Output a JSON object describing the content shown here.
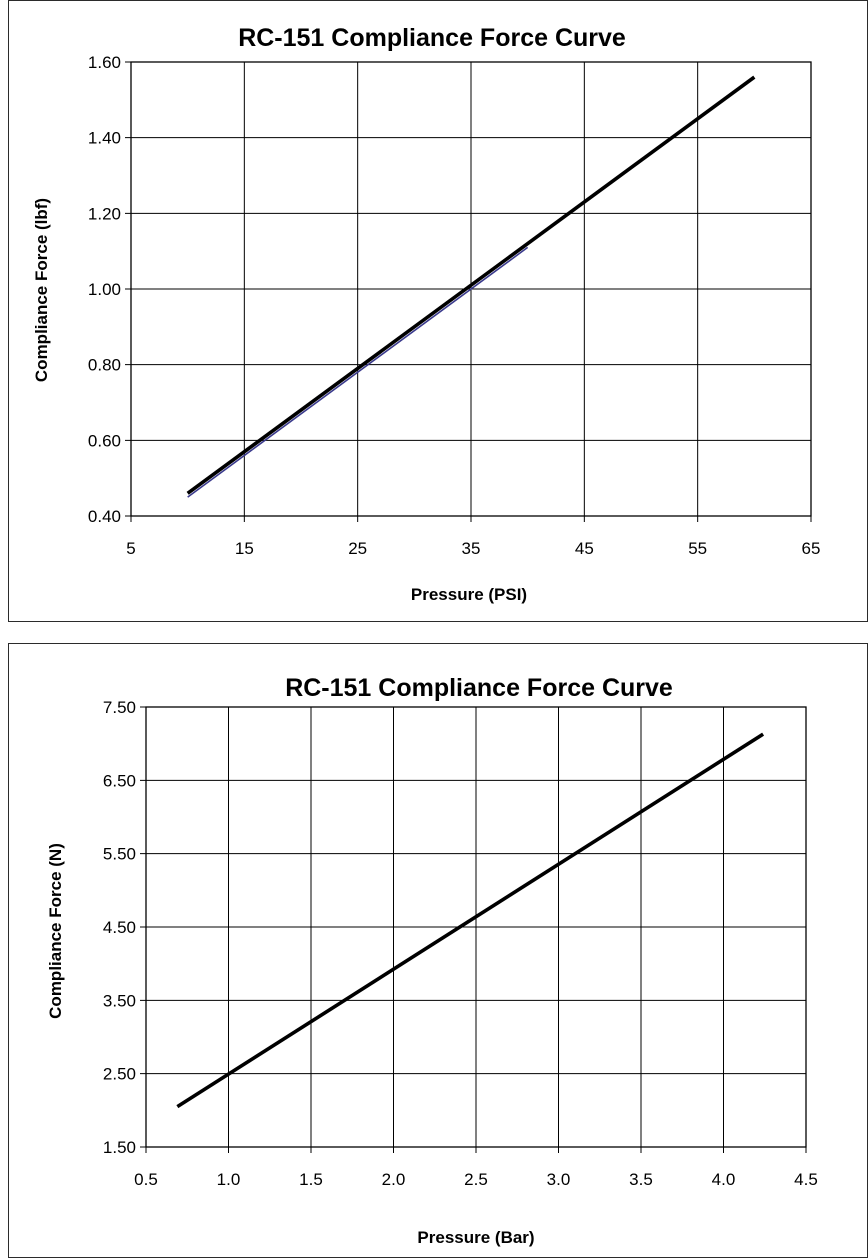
{
  "chart_data": [
    {
      "type": "line",
      "title": "RC-151  Compliance Force Curve",
      "xlabel": "Pressure (PSI)",
      "ylabel": "Compliance Force (lbf)",
      "xlim": [
        5,
        65
      ],
      "ylim": [
        0.4,
        1.6
      ],
      "x_ticks": [
        "5",
        "15",
        "25",
        "35",
        "45",
        "55",
        "65"
      ],
      "y_ticks": [
        "0.40",
        "0.60",
        "0.80",
        "1.00",
        "1.20",
        "1.40",
        "1.60"
      ],
      "grid": true,
      "legend": "none",
      "series": [
        {
          "color": "#000000",
          "x": [
            10,
            60
          ],
          "y": [
            0.46,
            1.56
          ]
        },
        {
          "color": "#3a3a8c",
          "x": [
            10,
            40
          ],
          "y": [
            0.45,
            1.11
          ]
        }
      ]
    },
    {
      "type": "line",
      "title": "RC-151  Compliance Force Curve",
      "xlabel": "Pressure (Bar)",
      "ylabel": "Compliance Force (N)",
      "xlim": [
        0.5,
        4.5
      ],
      "ylim": [
        1.5,
        7.5
      ],
      "x_ticks": [
        "0.5",
        "1.0",
        "1.5",
        "2.0",
        "2.5",
        "3.0",
        "3.5",
        "4.0",
        "4.5"
      ],
      "y_ticks": [
        "1.50",
        "2.50",
        "3.50",
        "4.50",
        "5.50",
        "6.50",
        "7.50"
      ],
      "grid": true,
      "legend": "none",
      "series": [
        {
          "color": "#000000",
          "x": [
            0.69,
            4.24
          ],
          "y": [
            2.05,
            7.13
          ]
        }
      ]
    }
  ]
}
